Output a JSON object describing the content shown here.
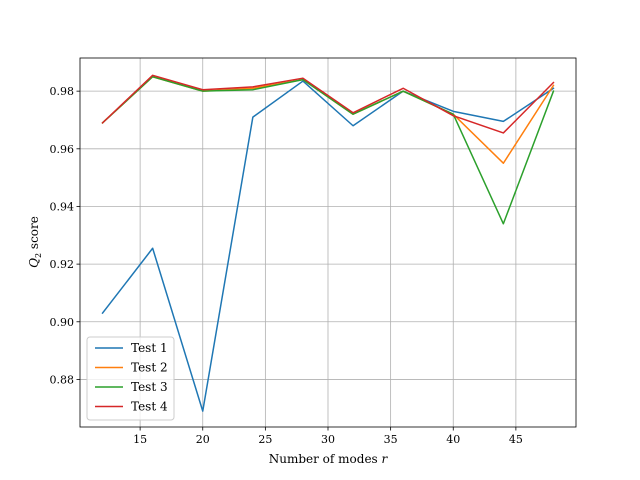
{
  "chart_data": {
    "type": "line",
    "xlabel": "Number of modes r",
    "ylabel": "Q2 score",
    "xlim": [
      10.2,
      49.8
    ],
    "ylim": [
      0.8635,
      0.9915
    ],
    "xticks": [
      15,
      20,
      25,
      30,
      35,
      40,
      45
    ],
    "yticks": [
      0.88,
      0.9,
      0.92,
      0.94,
      0.96,
      0.98
    ],
    "xtick_labels": [
      "15",
      "20",
      "25",
      "30",
      "35",
      "40",
      "45"
    ],
    "ytick_labels": [
      "0.88",
      "0.90",
      "0.92",
      "0.94",
      "0.96",
      "0.98"
    ],
    "grid": true,
    "legend_position": "lower-left",
    "x": [
      12,
      16,
      20,
      24,
      28,
      32,
      36,
      40,
      44,
      48
    ],
    "series": [
      {
        "name": "Test 1",
        "color": "#1f77b4",
        "values": [
          0.903,
          0.9255,
          0.869,
          0.971,
          0.9835,
          0.968,
          0.98,
          0.973,
          0.9695,
          0.981
        ]
      },
      {
        "name": "Test 2",
        "color": "#ff7f0e",
        "values": [
          0.969,
          0.985,
          0.98,
          0.981,
          0.984,
          0.972,
          0.98,
          0.972,
          0.955,
          0.982
        ]
      },
      {
        "name": "Test 3",
        "color": "#2ca02c",
        "values": [
          0.969,
          0.985,
          0.98,
          0.9805,
          0.984,
          0.972,
          0.98,
          0.972,
          0.934,
          0.98
        ]
      },
      {
        "name": "Test 4",
        "color": "#d62728",
        "values": [
          0.969,
          0.9855,
          0.9805,
          0.9815,
          0.9845,
          0.9725,
          0.981,
          0.9715,
          0.9655,
          0.983
        ]
      }
    ]
  }
}
